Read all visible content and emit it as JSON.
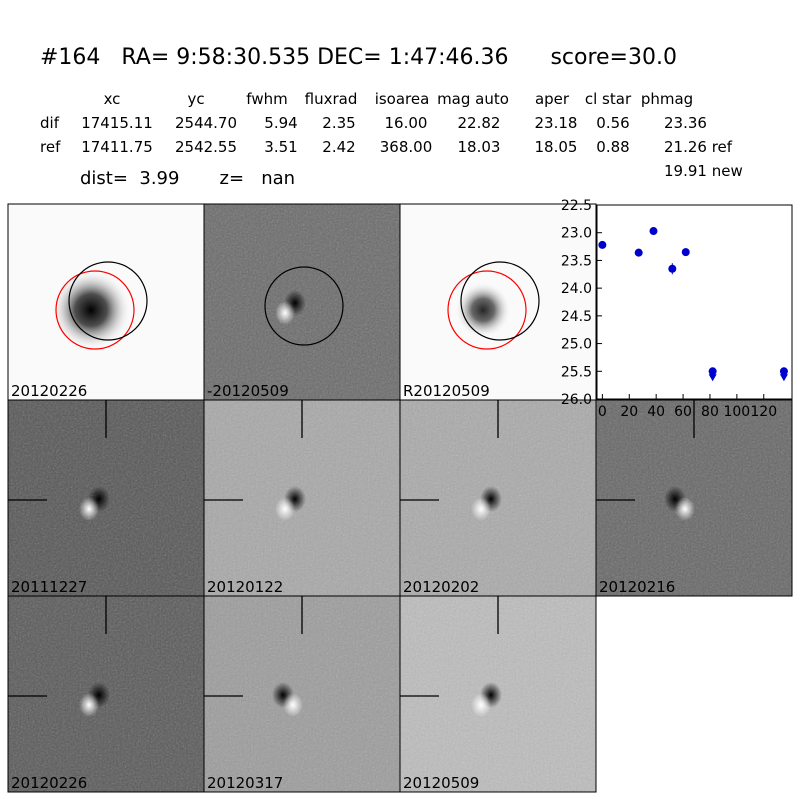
{
  "header": {
    "title": "#164   RA= 9:58:30.535 DEC= 1:47:46.36      score=30.0",
    "columns": [
      "xc",
      "yc",
      "fwhm",
      "fluxrad",
      "isoarea",
      "mag auto",
      "aper",
      "cl star",
      "phmag"
    ],
    "rows": [
      {
        "name": "dif",
        "cells": [
          "17415.11",
          "2544.70",
          "5.94",
          "2.35",
          "16.00",
          "22.82",
          "23.18",
          "0.56",
          "23.36"
        ]
      },
      {
        "name": "ref",
        "cells": [
          "17411.75",
          "2542.55",
          "3.51",
          "2.42",
          "368.00",
          "18.03",
          "18.05",
          "0.88",
          "21.26 ref"
        ]
      }
    ],
    "extra": "19.91 new",
    "dist": "dist=  3.99       z=   nan"
  },
  "panels": [
    {
      "label": "20120226",
      "color": "#000000"
    },
    {
      "label": "-20120509",
      "color": "#000000"
    },
    {
      "label": "R20120509",
      "color": "#000000"
    },
    {
      "label": "20111227",
      "color": "#000000"
    },
    {
      "label": "20120122",
      "color": "#000000"
    },
    {
      "label": "20120202",
      "color": "#000000"
    },
    {
      "label": "20120216",
      "color": "#000000"
    },
    {
      "label": "20120226",
      "color": "#ff0000"
    },
    {
      "label": "20120317",
      "color": "#000000"
    },
    {
      "label": "20120509",
      "color": "#000000"
    }
  ],
  "chart_data": {
    "type": "scatter",
    "series": [
      {
        "color": "#0000cc",
        "x": [
          0,
          27,
          38,
          52,
          62
        ],
        "values": [
          23.22,
          23.36,
          22.97,
          23.65,
          23.35
        ],
        "errors": [
          0.06,
          0.07,
          0.05,
          0.1,
          0.07
        ]
      },
      {
        "color": "#0000cc",
        "x": [
          82,
          135
        ],
        "values": [
          25.5,
          25.5
        ],
        "upper_limit": true
      }
    ],
    "xlim": [
      -4,
      141
    ],
    "xticks": [
      0,
      20,
      40,
      60,
      80,
      100,
      120
    ],
    "ylim": [
      26.0,
      22.5
    ],
    "yticks": [
      22.5,
      {
        "value": 23,
        "label": "23.0"
      },
      23.5,
      {
        "value": 24,
        "label": "24.0"
      },
      24.5,
      {
        "value": 25,
        "label": "25.0"
      },
      25.5,
      {
        "value": 26,
        "label": "26.0"
      }
    ]
  }
}
